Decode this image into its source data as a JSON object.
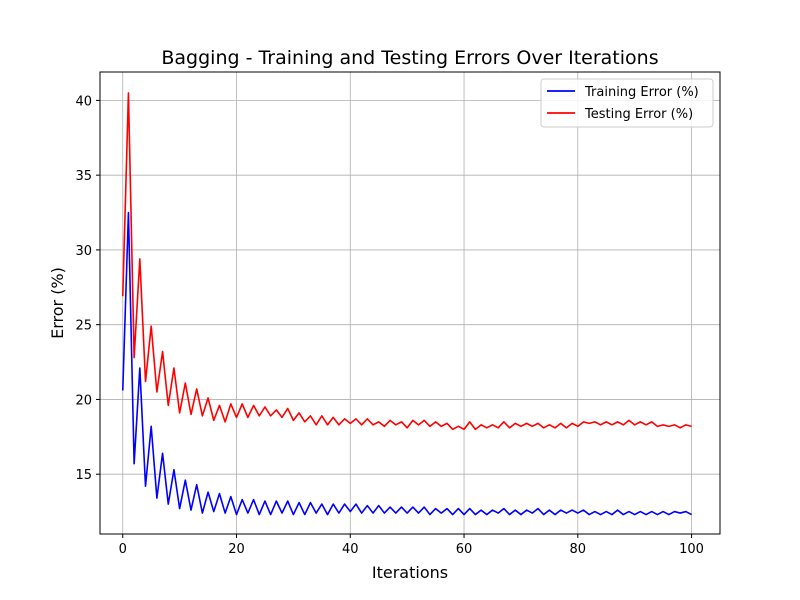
{
  "chart_data": {
    "type": "line",
    "title": "Bagging - Training and Testing Errors Over Iterations",
    "xlabel": "Iterations",
    "ylabel": "Error (%)",
    "xlim": [
      -4,
      105
    ],
    "ylim": [
      11.0,
      41.9
    ],
    "xticks": [
      0,
      20,
      40,
      60,
      80,
      100
    ],
    "yticks": [
      15,
      20,
      25,
      30,
      35,
      40
    ],
    "grid": true,
    "legend_position": "top-right",
    "x": [
      0,
      1,
      2,
      3,
      4,
      5,
      6,
      7,
      8,
      9,
      10,
      11,
      12,
      13,
      14,
      15,
      16,
      17,
      18,
      19,
      20,
      21,
      22,
      23,
      24,
      25,
      26,
      27,
      28,
      29,
      30,
      31,
      32,
      33,
      34,
      35,
      36,
      37,
      38,
      39,
      40,
      41,
      42,
      43,
      44,
      45,
      46,
      47,
      48,
      49,
      50,
      51,
      52,
      53,
      54,
      55,
      56,
      57,
      58,
      59,
      60,
      61,
      62,
      63,
      64,
      65,
      66,
      67,
      68,
      69,
      70,
      71,
      72,
      73,
      74,
      75,
      76,
      77,
      78,
      79,
      80,
      81,
      82,
      83,
      84,
      85,
      86,
      87,
      88,
      89,
      90,
      91,
      92,
      93,
      94,
      95,
      96,
      97,
      98,
      99,
      100
    ],
    "series": [
      {
        "name": "Training Error (%)",
        "color": "#0000ff",
        "values": [
          20.6,
          32.5,
          15.7,
          22.1,
          14.2,
          18.2,
          13.4,
          16.4,
          13.0,
          15.3,
          12.7,
          14.6,
          12.6,
          14.3,
          12.4,
          13.8,
          12.5,
          13.7,
          12.4,
          13.5,
          12.3,
          13.3,
          12.4,
          13.3,
          12.3,
          13.2,
          12.3,
          13.2,
          12.4,
          13.2,
          12.3,
          13.1,
          12.3,
          13.1,
          12.4,
          13.0,
          12.3,
          13.0,
          12.4,
          13.0,
          12.5,
          13.0,
          12.4,
          12.9,
          12.4,
          12.9,
          12.4,
          12.8,
          12.4,
          12.8,
          12.4,
          12.8,
          12.4,
          12.8,
          12.3,
          12.7,
          12.4,
          12.7,
          12.3,
          12.7,
          12.3,
          12.7,
          12.3,
          12.6,
          12.3,
          12.6,
          12.4,
          12.7,
          12.3,
          12.6,
          12.3,
          12.6,
          12.4,
          12.7,
          12.3,
          12.6,
          12.3,
          12.6,
          12.4,
          12.6,
          12.4,
          12.6,
          12.3,
          12.5,
          12.3,
          12.5,
          12.3,
          12.6,
          12.3,
          12.5,
          12.3,
          12.5,
          12.3,
          12.5,
          12.3,
          12.5,
          12.3,
          12.5,
          12.4,
          12.5,
          12.3
        ]
      },
      {
        "name": "Testing Error (%)",
        "color": "#ff0000",
        "values": [
          26.9,
          40.5,
          22.8,
          29.4,
          21.2,
          24.9,
          20.5,
          23.2,
          19.6,
          22.1,
          19.1,
          21.1,
          19.0,
          20.7,
          18.9,
          20.1,
          18.6,
          19.6,
          18.5,
          19.7,
          18.8,
          19.7,
          18.8,
          19.6,
          18.9,
          19.5,
          18.9,
          19.3,
          18.8,
          19.4,
          18.6,
          19.1,
          18.5,
          18.9,
          18.3,
          18.9,
          18.3,
          18.8,
          18.3,
          18.7,
          18.4,
          18.7,
          18.3,
          18.7,
          18.3,
          18.5,
          18.2,
          18.6,
          18.3,
          18.5,
          18.1,
          18.6,
          18.3,
          18.6,
          18.2,
          18.5,
          18.2,
          18.4,
          18.0,
          18.2,
          18.0,
          18.5,
          18.0,
          18.3,
          18.1,
          18.3,
          18.1,
          18.5,
          18.1,
          18.4,
          18.2,
          18.4,
          18.2,
          18.4,
          18.1,
          18.3,
          18.1,
          18.4,
          18.1,
          18.4,
          18.2,
          18.5,
          18.4,
          18.5,
          18.3,
          18.5,
          18.3,
          18.5,
          18.3,
          18.6,
          18.3,
          18.5,
          18.3,
          18.5,
          18.2,
          18.3,
          18.2,
          18.3,
          18.1,
          18.3,
          18.2
        ]
      }
    ]
  }
}
